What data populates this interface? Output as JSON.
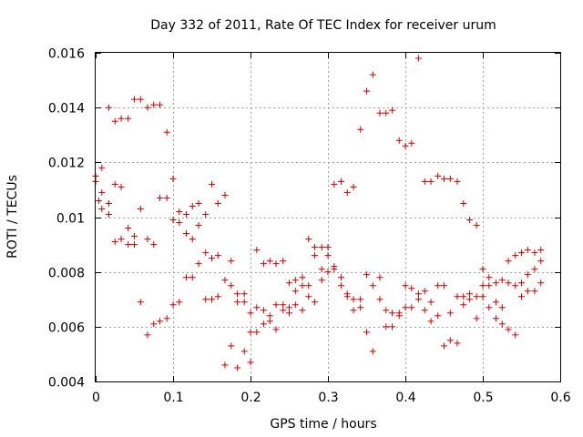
{
  "chart_data": {
    "type": "scatter",
    "title": "Day 332 of 2011, Rate Of TEC Index for receiver urum",
    "xlabel": "GPS time / hours",
    "ylabel": "ROTI / TECUs",
    "xlim": [
      0,
      0.6
    ],
    "ylim": [
      0.004,
      0.016
    ],
    "xticks": [
      0,
      0.1,
      0.2,
      0.3,
      0.4,
      0.5,
      0.6
    ],
    "xtick_labels": [
      "0",
      "0.1",
      "0.2",
      "0.3",
      "0.4",
      "0.5",
      "0.6"
    ],
    "yticks": [
      0.004,
      0.006,
      0.008,
      0.01,
      0.012,
      0.014,
      0.016
    ],
    "ytick_labels": [
      "0.004",
      "0.006",
      "0.008",
      "0.01",
      "0.012",
      "0.014",
      "0.016"
    ],
    "grid": true,
    "marker": "+",
    "color": "#cc0000",
    "series": [
      {
        "name": "ROTI",
        "points": [
          [
            0.0,
            0.0115
          ],
          [
            0.0,
            0.0113
          ],
          [
            0.004,
            0.0106
          ],
          [
            0.008,
            0.0118
          ],
          [
            0.008,
            0.0109
          ],
          [
            0.008,
            0.0103
          ],
          [
            0.017,
            0.014
          ],
          [
            0.017,
            0.0105
          ],
          [
            0.017,
            0.0101
          ],
          [
            0.025,
            0.0135
          ],
          [
            0.025,
            0.0112
          ],
          [
            0.025,
            0.0091
          ],
          [
            0.033,
            0.0136
          ],
          [
            0.033,
            0.0111
          ],
          [
            0.033,
            0.0092
          ],
          [
            0.042,
            0.0136
          ],
          [
            0.042,
            0.0096
          ],
          [
            0.042,
            0.009
          ],
          [
            0.05,
            0.0143
          ],
          [
            0.05,
            0.0093
          ],
          [
            0.05,
            0.009
          ],
          [
            0.058,
            0.0143
          ],
          [
            0.058,
            0.0103
          ],
          [
            0.058,
            0.0069
          ],
          [
            0.067,
            0.014
          ],
          [
            0.067,
            0.0092
          ],
          [
            0.067,
            0.0057
          ],
          [
            0.075,
            0.0141
          ],
          [
            0.075,
            0.009
          ],
          [
            0.075,
            0.0061
          ],
          [
            0.083,
            0.0141
          ],
          [
            0.083,
            0.0107
          ],
          [
            0.083,
            0.0062
          ],
          [
            0.092,
            0.0131
          ],
          [
            0.092,
            0.0107
          ],
          [
            0.092,
            0.0063
          ],
          [
            0.1,
            0.0114
          ],
          [
            0.1,
            0.0099
          ],
          [
            0.1,
            0.0068
          ],
          [
            0.108,
            0.0102
          ],
          [
            0.108,
            0.0098
          ],
          [
            0.108,
            0.0069
          ],
          [
            0.117,
            0.0101
          ],
          [
            0.117,
            0.0094
          ],
          [
            0.117,
            0.0078
          ],
          [
            0.125,
            0.0104
          ],
          [
            0.125,
            0.0092
          ],
          [
            0.125,
            0.0078
          ],
          [
            0.133,
            0.0105
          ],
          [
            0.133,
            0.0097
          ],
          [
            0.133,
            0.0083
          ],
          [
            0.142,
            0.0101
          ],
          [
            0.142,
            0.0087
          ],
          [
            0.142,
            0.007
          ],
          [
            0.15,
            0.0112
          ],
          [
            0.15,
            0.0085
          ],
          [
            0.15,
            0.007
          ],
          [
            0.158,
            0.0105
          ],
          [
            0.158,
            0.0086
          ],
          [
            0.158,
            0.0071
          ],
          [
            0.167,
            0.0108
          ],
          [
            0.167,
            0.0077
          ],
          [
            0.167,
            0.0046
          ],
          [
            0.175,
            0.0084
          ],
          [
            0.175,
            0.0075
          ],
          [
            0.175,
            0.0053
          ],
          [
            0.183,
            0.0072
          ],
          [
            0.183,
            0.0069
          ],
          [
            0.183,
            0.0045
          ],
          [
            0.192,
            0.0072
          ],
          [
            0.192,
            0.0069
          ],
          [
            0.192,
            0.0051
          ],
          [
            0.2,
            0.0065
          ],
          [
            0.2,
            0.0058
          ],
          [
            0.2,
            0.0047
          ],
          [
            0.208,
            0.0088
          ],
          [
            0.208,
            0.0067
          ],
          [
            0.208,
            0.0058
          ],
          [
            0.217,
            0.0083
          ],
          [
            0.217,
            0.0066
          ],
          [
            0.217,
            0.0061
          ],
          [
            0.225,
            0.0084
          ],
          [
            0.225,
            0.0064
          ],
          [
            0.225,
            0.0062
          ],
          [
            0.233,
            0.0083
          ],
          [
            0.233,
            0.0068
          ],
          [
            0.233,
            0.0059
          ],
          [
            0.242,
            0.0084
          ],
          [
            0.242,
            0.0068
          ],
          [
            0.242,
            0.0066
          ],
          [
            0.25,
            0.0076
          ],
          [
            0.25,
            0.0067
          ],
          [
            0.25,
            0.0065
          ],
          [
            0.258,
            0.0077
          ],
          [
            0.258,
            0.0073
          ],
          [
            0.258,
            0.0068
          ],
          [
            0.267,
            0.0078
          ],
          [
            0.267,
            0.0075
          ],
          [
            0.267,
            0.0066
          ],
          [
            0.275,
            0.0092
          ],
          [
            0.275,
            0.0075
          ],
          [
            0.275,
            0.0071
          ],
          [
            0.283,
            0.0089
          ],
          [
            0.283,
            0.0086
          ],
          [
            0.283,
            0.0069
          ],
          [
            0.292,
            0.0089
          ],
          [
            0.292,
            0.0081
          ],
          [
            0.292,
            0.0077
          ],
          [
            0.3,
            0.0089
          ],
          [
            0.3,
            0.0086
          ],
          [
            0.3,
            0.008
          ],
          [
            0.308,
            0.0112
          ],
          [
            0.308,
            0.0082
          ],
          [
            0.308,
            0.0081
          ],
          [
            0.317,
            0.0113
          ],
          [
            0.317,
            0.0078
          ],
          [
            0.317,
            0.0075
          ],
          [
            0.325,
            0.0109
          ],
          [
            0.325,
            0.0072
          ],
          [
            0.325,
            0.0071
          ],
          [
            0.333,
            0.0111
          ],
          [
            0.333,
            0.007
          ],
          [
            0.333,
            0.0066
          ],
          [
            0.342,
            0.0132
          ],
          [
            0.342,
            0.007
          ],
          [
            0.342,
            0.0067
          ],
          [
            0.35,
            0.0146
          ],
          [
            0.35,
            0.0079
          ],
          [
            0.35,
            0.0058
          ],
          [
            0.358,
            0.0152
          ],
          [
            0.358,
            0.0075
          ],
          [
            0.358,
            0.0051
          ],
          [
            0.367,
            0.0138
          ],
          [
            0.367,
            0.0078
          ],
          [
            0.367,
            0.007
          ],
          [
            0.375,
            0.0138
          ],
          [
            0.375,
            0.0066
          ],
          [
            0.375,
            0.006
          ],
          [
            0.383,
            0.0139
          ],
          [
            0.383,
            0.0065
          ],
          [
            0.383,
            0.006
          ],
          [
            0.392,
            0.0128
          ],
          [
            0.392,
            0.0065
          ],
          [
            0.392,
            0.0064
          ],
          [
            0.4,
            0.0126
          ],
          [
            0.4,
            0.0075
          ],
          [
            0.4,
            0.0067
          ],
          [
            0.408,
            0.0127
          ],
          [
            0.408,
            0.0074
          ],
          [
            0.408,
            0.0067
          ],
          [
            0.417,
            0.0158
          ],
          [
            0.417,
            0.0072
          ],
          [
            0.417,
            0.007
          ],
          [
            0.425,
            0.0113
          ],
          [
            0.425,
            0.0073
          ],
          [
            0.425,
            0.0066
          ],
          [
            0.433,
            0.0113
          ],
          [
            0.433,
            0.0069
          ],
          [
            0.433,
            0.0062
          ],
          [
            0.442,
            0.0115
          ],
          [
            0.442,
            0.0075
          ],
          [
            0.442,
            0.0064
          ],
          [
            0.45,
            0.0114
          ],
          [
            0.45,
            0.0075
          ],
          [
            0.45,
            0.0053
          ],
          [
            0.458,
            0.0114
          ],
          [
            0.458,
            0.0065
          ],
          [
            0.458,
            0.0055
          ],
          [
            0.467,
            0.0113
          ],
          [
            0.467,
            0.0071
          ],
          [
            0.467,
            0.0054
          ],
          [
            0.475,
            0.0105
          ],
          [
            0.475,
            0.0071
          ],
          [
            0.475,
            0.0068
          ],
          [
            0.483,
            0.0099
          ],
          [
            0.483,
            0.0072
          ],
          [
            0.483,
            0.007
          ],
          [
            0.492,
            0.0097
          ],
          [
            0.492,
            0.0071
          ],
          [
            0.492,
            0.0063
          ],
          [
            0.5,
            0.0081
          ],
          [
            0.5,
            0.0075
          ],
          [
            0.5,
            0.0071
          ],
          [
            0.508,
            0.0078
          ],
          [
            0.508,
            0.0075
          ],
          [
            0.508,
            0.0067
          ],
          [
            0.517,
            0.0076
          ],
          [
            0.517,
            0.0069
          ],
          [
            0.517,
            0.0063
          ],
          [
            0.525,
            0.0077
          ],
          [
            0.525,
            0.0067
          ],
          [
            0.525,
            0.0061
          ],
          [
            0.533,
            0.0084
          ],
          [
            0.533,
            0.0076
          ],
          [
            0.533,
            0.0059
          ],
          [
            0.542,
            0.0086
          ],
          [
            0.542,
            0.0075
          ],
          [
            0.542,
            0.0057
          ],
          [
            0.55,
            0.0087
          ],
          [
            0.55,
            0.0076
          ],
          [
            0.55,
            0.0071
          ],
          [
            0.558,
            0.0088
          ],
          [
            0.558,
            0.0079
          ],
          [
            0.558,
            0.0073
          ],
          [
            0.567,
            0.0087
          ],
          [
            0.567,
            0.0081
          ],
          [
            0.567,
            0.0073
          ],
          [
            0.575,
            0.0088
          ],
          [
            0.575,
            0.0084
          ],
          [
            0.575,
            0.0076
          ]
        ]
      }
    ]
  }
}
